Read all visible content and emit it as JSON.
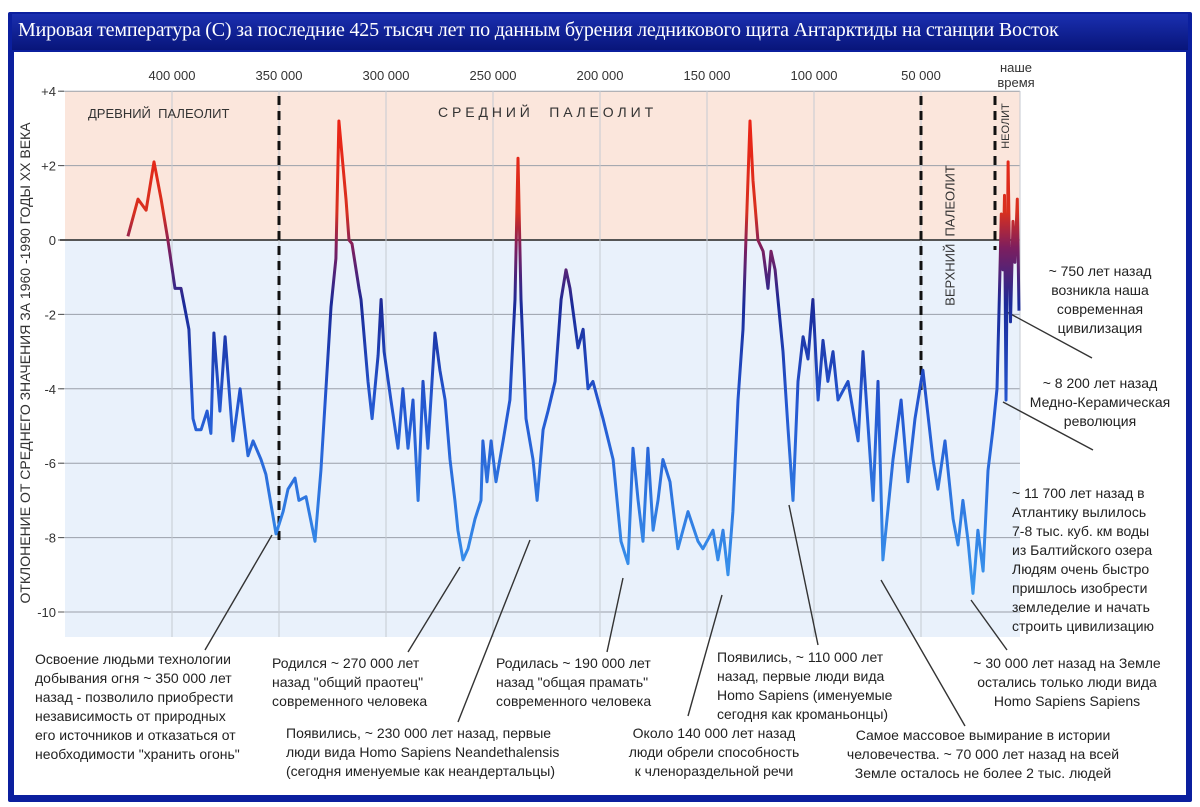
{
  "title": "Мировая температура (С) за последние 425 тысяч лет по данным бурения ледникового щита Антарктиды на станции Восток",
  "colors": {
    "frame": "#0b1f9e",
    "warm_band": "#fbe6dc",
    "cold_band": "#e9f1fb",
    "warm_line": "#e8231a",
    "cold_line": "#3a9af0"
  },
  "chart_data": {
    "type": "line",
    "title": "Мировая температура (С) за последние 425 тысяч лет по данным бурения ледникового щита Антарктиды на станции Восток",
    "xlabel": "",
    "ylabel": "ОТКЛОНЕНИЕ ОТ СРЕДНЕГО ЗНАЧЕНИЯ ЗА 1960 -1990 ГОДЫ XX ВЕКА",
    "x_reversed": true,
    "xlim": [
      0,
      425000
    ],
    "ylim": [
      -10.7,
      4
    ],
    "grid": true,
    "x_ticks": [
      400000,
      350000,
      300000,
      250000,
      200000,
      150000,
      100000,
      50000
    ],
    "x_tick_labels": [
      "400 000",
      "350 000",
      "300 000",
      "250 000",
      "200 000",
      "150 000",
      "100 000",
      "50 000"
    ],
    "x_end_label": "наше время",
    "y_ticks": [
      4,
      2,
      0,
      -2,
      -4,
      -6,
      -8,
      -10
    ],
    "y_tick_labels": [
      "+4",
      "+2",
      "0",
      "-2",
      "-4",
      "-6",
      "-8",
      "-10"
    ],
    "periods": [
      {
        "label": "ДРЕВНИЙ  ПАЛЕОЛИТ"
      },
      {
        "label": "С Р Е Д Н И Й     П А Л Е О Л И Т"
      },
      {
        "label": "ВЕРХНИЙ  ПАЛЕОЛИТ"
      },
      {
        "label": "НЕОЛИТ"
      }
    ],
    "period_boundaries": [
      350000,
      50000,
      15000
    ],
    "series": [
      {
        "points": [
          [
            420600,
            0.1
          ],
          [
            415900,
            1.1
          ],
          [
            412100,
            0.8
          ],
          [
            408400,
            2.1
          ],
          [
            405100,
            1.1
          ],
          [
            401900,
            0
          ],
          [
            398600,
            -1.3
          ],
          [
            395800,
            -1.3
          ],
          [
            392100,
            -2.4
          ],
          [
            390200,
            -4.8
          ],
          [
            388800,
            -5.1
          ],
          [
            386400,
            -5.1
          ],
          [
            383600,
            -4.6
          ],
          [
            381800,
            -5.2
          ],
          [
            380400,
            -2.5
          ],
          [
            377600,
            -4.6
          ],
          [
            375200,
            -2.6
          ],
          [
            371500,
            -5.4
          ],
          [
            368200,
            -4.0
          ],
          [
            366800,
            -4.7
          ],
          [
            364500,
            -5.8
          ],
          [
            362100,
            -5.4
          ],
          [
            358400,
            -5.9
          ],
          [
            356100,
            -6.3
          ],
          [
            351400,
            -7.9
          ],
          [
            348100,
            -7.3
          ],
          [
            345800,
            -6.7
          ],
          [
            342500,
            -6.4
          ],
          [
            340700,
            -7.0
          ],
          [
            337400,
            -6.9
          ],
          [
            333200,
            -8.1
          ],
          [
            330400,
            -6.2
          ],
          [
            325700,
            -1.8
          ],
          [
            323400,
            -0.5
          ],
          [
            322000,
            3.2
          ],
          [
            318700,
            1.1
          ],
          [
            317300,
            0
          ],
          [
            315900,
            -0.1
          ],
          [
            312600,
            -1.3
          ],
          [
            311700,
            -1.6
          ],
          [
            308400,
            -3.8
          ],
          [
            306500,
            -4.8
          ],
          [
            303700,
            -3.1
          ],
          [
            302300,
            -1.6
          ],
          [
            300900,
            -3.0
          ],
          [
            297700,
            -4.3
          ],
          [
            294400,
            -5.6
          ],
          [
            292100,
            -4.0
          ],
          [
            289700,
            -5.6
          ],
          [
            287400,
            -4.3
          ],
          [
            285000,
            -7.0
          ],
          [
            282700,
            -3.8
          ],
          [
            280400,
            -5.6
          ],
          [
            277100,
            -2.5
          ],
          [
            274800,
            -3.5
          ],
          [
            272400,
            -4.3
          ],
          [
            270100,
            -5.9
          ],
          [
            267800,
            -7.0
          ],
          [
            266400,
            -7.8
          ],
          [
            264000,
            -8.6
          ],
          [
            261700,
            -8.3
          ],
          [
            258400,
            -7.5
          ],
          [
            255600,
            -7.0
          ],
          [
            254700,
            -5.4
          ],
          [
            252800,
            -6.5
          ],
          [
            250900,
            -5.4
          ],
          [
            248600,
            -6.5
          ],
          [
            245300,
            -5.4
          ],
          [
            242100,
            -4.3
          ],
          [
            239700,
            -1.6
          ],
          [
            238300,
            2.2
          ],
          [
            236900,
            -1.6
          ],
          [
            234600,
            -4.8
          ],
          [
            231300,
            -5.9
          ],
          [
            229400,
            -7.0
          ],
          [
            226600,
            -5.1
          ],
          [
            224300,
            -4.6
          ],
          [
            221000,
            -3.8
          ],
          [
            218200,
            -1.6
          ],
          [
            215900,
            -0.8
          ],
          [
            214000,
            -1.3
          ],
          [
            210300,
            -2.9
          ],
          [
            207900,
            -2.4
          ],
          [
            205600,
            -4.0
          ],
          [
            203300,
            -3.8
          ],
          [
            198600,
            -4.8
          ],
          [
            193900,
            -5.9
          ],
          [
            190200,
            -8.1
          ],
          [
            186900,
            -8.7
          ],
          [
            184600,
            -5.6
          ],
          [
            182200,
            -7.0
          ],
          [
            179900,
            -8.1
          ],
          [
            177600,
            -5.6
          ],
          [
            175200,
            -7.8
          ],
          [
            172900,
            -7.0
          ],
          [
            170600,
            -5.9
          ],
          [
            167300,
            -6.5
          ],
          [
            163600,
            -8.3
          ],
          [
            158900,
            -7.3
          ],
          [
            154200,
            -8.1
          ],
          [
            151900,
            -8.3
          ],
          [
            147200,
            -7.8
          ],
          [
            144900,
            -8.6
          ],
          [
            142500,
            -7.8
          ],
          [
            140200,
            -9.0
          ],
          [
            137900,
            -7.3
          ],
          [
            135500,
            -4.3
          ],
          [
            133200,
            -2.4
          ],
          [
            131800,
            0
          ],
          [
            129900,
            3.2
          ],
          [
            128500,
            1.6
          ],
          [
            126200,
            0
          ],
          [
            123800,
            -0.3
          ],
          [
            121500,
            -1.3
          ],
          [
            120100,
            -0.3
          ],
          [
            118200,
            -0.8
          ],
          [
            114500,
            -3.0
          ],
          [
            112100,
            -5.1
          ],
          [
            109800,
            -7.0
          ],
          [
            107500,
            -3.8
          ],
          [
            105100,
            -2.6
          ],
          [
            102800,
            -3.2
          ],
          [
            100500,
            -1.6
          ],
          [
            98100,
            -4.3
          ],
          [
            95800,
            -2.7
          ],
          [
            93500,
            -3.8
          ],
          [
            91100,
            -3.0
          ],
          [
            88800,
            -4.3
          ],
          [
            84100,
            -3.8
          ],
          [
            79400,
            -5.4
          ],
          [
            77100,
            -3.0
          ],
          [
            72400,
            -7.0
          ],
          [
            70100,
            -3.8
          ],
          [
            67800,
            -8.6
          ],
          [
            63100,
            -5.9
          ],
          [
            59300,
            -4.3
          ],
          [
            56100,
            -6.5
          ],
          [
            52800,
            -4.8
          ],
          [
            49100,
            -3.5
          ],
          [
            44400,
            -5.9
          ],
          [
            42100,
            -6.7
          ],
          [
            38800,
            -5.4
          ],
          [
            35000,
            -7.5
          ],
          [
            32700,
            -8.2
          ],
          [
            30400,
            -7.0
          ],
          [
            28000,
            -8.1
          ],
          [
            25700,
            -9.5
          ],
          [
            23400,
            -7.8
          ],
          [
            21000,
            -8.9
          ],
          [
            18700,
            -6.2
          ],
          [
            16400,
            -5.1
          ],
          [
            14500,
            -4.0
          ],
          [
            13500,
            -1.8
          ],
          [
            12500,
            0.7
          ],
          [
            11700,
            -0.8
          ],
          [
            11000,
            1.2
          ],
          [
            10300,
            -4.3
          ],
          [
            9300,
            2.1
          ],
          [
            8200,
            -2.2
          ],
          [
            7000,
            0.5
          ],
          [
            6100,
            -0.6
          ],
          [
            5000,
            1.1
          ],
          [
            4200,
            -1.9
          ]
        ]
      }
    ],
    "annotations": [
      {
        "id": "fire",
        "text": "Освоение людьми технологии\nдобывания огня ~ 350 000 лет\nназад - позволило приобрести\nнезависимость от природных\nего источников и отказаться от\nнеобходимости \"хранить огонь\""
      },
      {
        "id": "ancestor",
        "text": "Родился ~ 270 000 лет\nназад \"общий праотец\"\nсовременного человека"
      },
      {
        "id": "neanderthal",
        "text": "Появились, ~ 230 000 лет назад, первые\nлюди вида Homo Sapiens Neandethalensis\n(сегодня именуемые как неандертальцы)"
      },
      {
        "id": "ancestress",
        "text": "Родилась ~ 190 000 лет\nназад \"общая прамать\"\nсовременного человека"
      },
      {
        "id": "speech",
        "text": "Около 140 000 лет назад\nлюди обрели способность\nк членораздельной речи"
      },
      {
        "id": "cromagnon",
        "text": "Появились, ~ 110 000 лет\nназад, первые люди вида\nHomo Sapiens (именуемые\nсегодня как кроманьонцы)"
      },
      {
        "id": "extinction",
        "text": "Самое массовое вымирание в истории\nчеловечества. ~ 70 000 лет назад на всей\nЗемле осталось не более 2 тыс. людей"
      },
      {
        "id": "sapiens",
        "text": "~ 30 000 лет назад на Земле\nостались только люди вида\nHomo Sapiens Sapiens"
      },
      {
        "id": "baltic",
        "text": "~ 11 700 лет назад в\nАтлантику вылилось\n7-8 тыс. куб. км воды\nиз Балтийского озера\nЛюдям очень быстро\nпришлось изобрести\nземледелие и начать\nстроить цивилизацию"
      },
      {
        "id": "copper",
        "text": "~ 8 200 лет назад\nМедно-Керамическая\nреволюция"
      },
      {
        "id": "civilization",
        "text": "~ 750 лет назад\nвозникла наша\nсовременная\nцивилизация"
      }
    ]
  }
}
